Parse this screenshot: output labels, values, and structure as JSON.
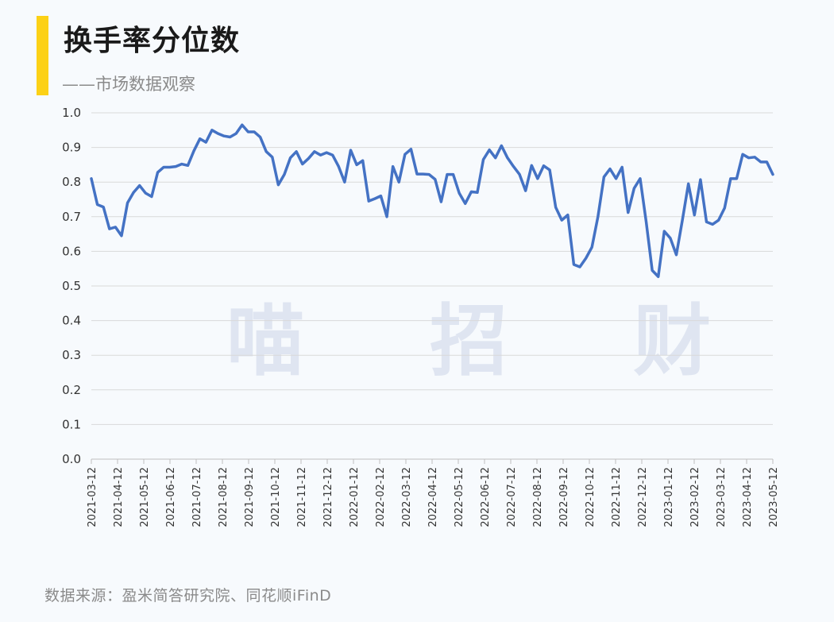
{
  "header": {
    "title": "换手率分位数",
    "subtitle": "——市场数据观察"
  },
  "watermark": "喵 招 财",
  "source": "数据来源：盈米简答研究院、同花顺iFinD",
  "colors": {
    "line": "#4472c4",
    "accent": "#fcd116",
    "grid": "#d9d9d9"
  },
  "chart_data": {
    "type": "line",
    "title": "换手率分位数",
    "xlabel": "",
    "ylabel": "",
    "ylim": [
      0,
      1.0
    ],
    "yticks": [
      "0.0",
      "0.1",
      "0.2",
      "0.3",
      "0.4",
      "0.5",
      "0.6",
      "0.7",
      "0.8",
      "0.9",
      "1.0"
    ],
    "xtick_labels": [
      "2021-03-12",
      "2021-04-12",
      "2021-05-12",
      "2021-06-12",
      "2021-07-12",
      "2021-08-12",
      "2021-09-12",
      "2021-10-12",
      "2021-11-12",
      "2021-12-12",
      "2022-01-12",
      "2022-02-12",
      "2022-03-12",
      "2022-04-12",
      "2022-05-12",
      "2022-06-12",
      "2022-07-12",
      "2022-08-12",
      "2022-09-12",
      "2022-10-12",
      "2022-11-12",
      "2022-12-12",
      "2023-01-12",
      "2023-02-12",
      "2023-03-12",
      "2023-04-12",
      "2023-05-12"
    ],
    "grid": true,
    "series": [
      {
        "values": [
          0.81,
          0.735,
          0.728,
          0.665,
          0.67,
          0.645,
          0.74,
          0.77,
          0.79,
          0.768,
          0.758,
          0.828,
          0.843,
          0.843,
          0.845,
          0.852,
          0.848,
          0.89,
          0.925,
          0.915,
          0.95,
          0.94,
          0.933,
          0.93,
          0.94,
          0.965,
          0.945,
          0.945,
          0.93,
          0.888,
          0.872,
          0.792,
          0.822,
          0.87,
          0.888,
          0.852,
          0.868,
          0.888,
          0.878,
          0.885,
          0.878,
          0.845,
          0.8,
          0.892,
          0.85,
          0.862,
          0.745,
          0.752,
          0.76,
          0.7,
          0.845,
          0.8,
          0.88,
          0.895,
          0.823,
          0.823,
          0.822,
          0.808,
          0.743,
          0.822,
          0.822,
          0.768,
          0.738,
          0.772,
          0.77,
          0.865,
          0.893,
          0.87,
          0.905,
          0.87,
          0.845,
          0.822,
          0.775,
          0.848,
          0.81,
          0.847,
          0.835,
          0.727,
          0.69,
          0.705,
          0.562,
          0.555,
          0.58,
          0.612,
          0.7,
          0.815,
          0.838,
          0.81,
          0.843,
          0.712,
          0.782,
          0.81,
          0.685,
          0.545,
          0.527,
          0.658,
          0.638,
          0.59,
          0.69,
          0.795,
          0.705,
          0.807,
          0.685,
          0.678,
          0.69,
          0.725,
          0.81,
          0.81,
          0.88,
          0.87,
          0.872,
          0.858,
          0.858,
          0.822
        ]
      }
    ]
  }
}
